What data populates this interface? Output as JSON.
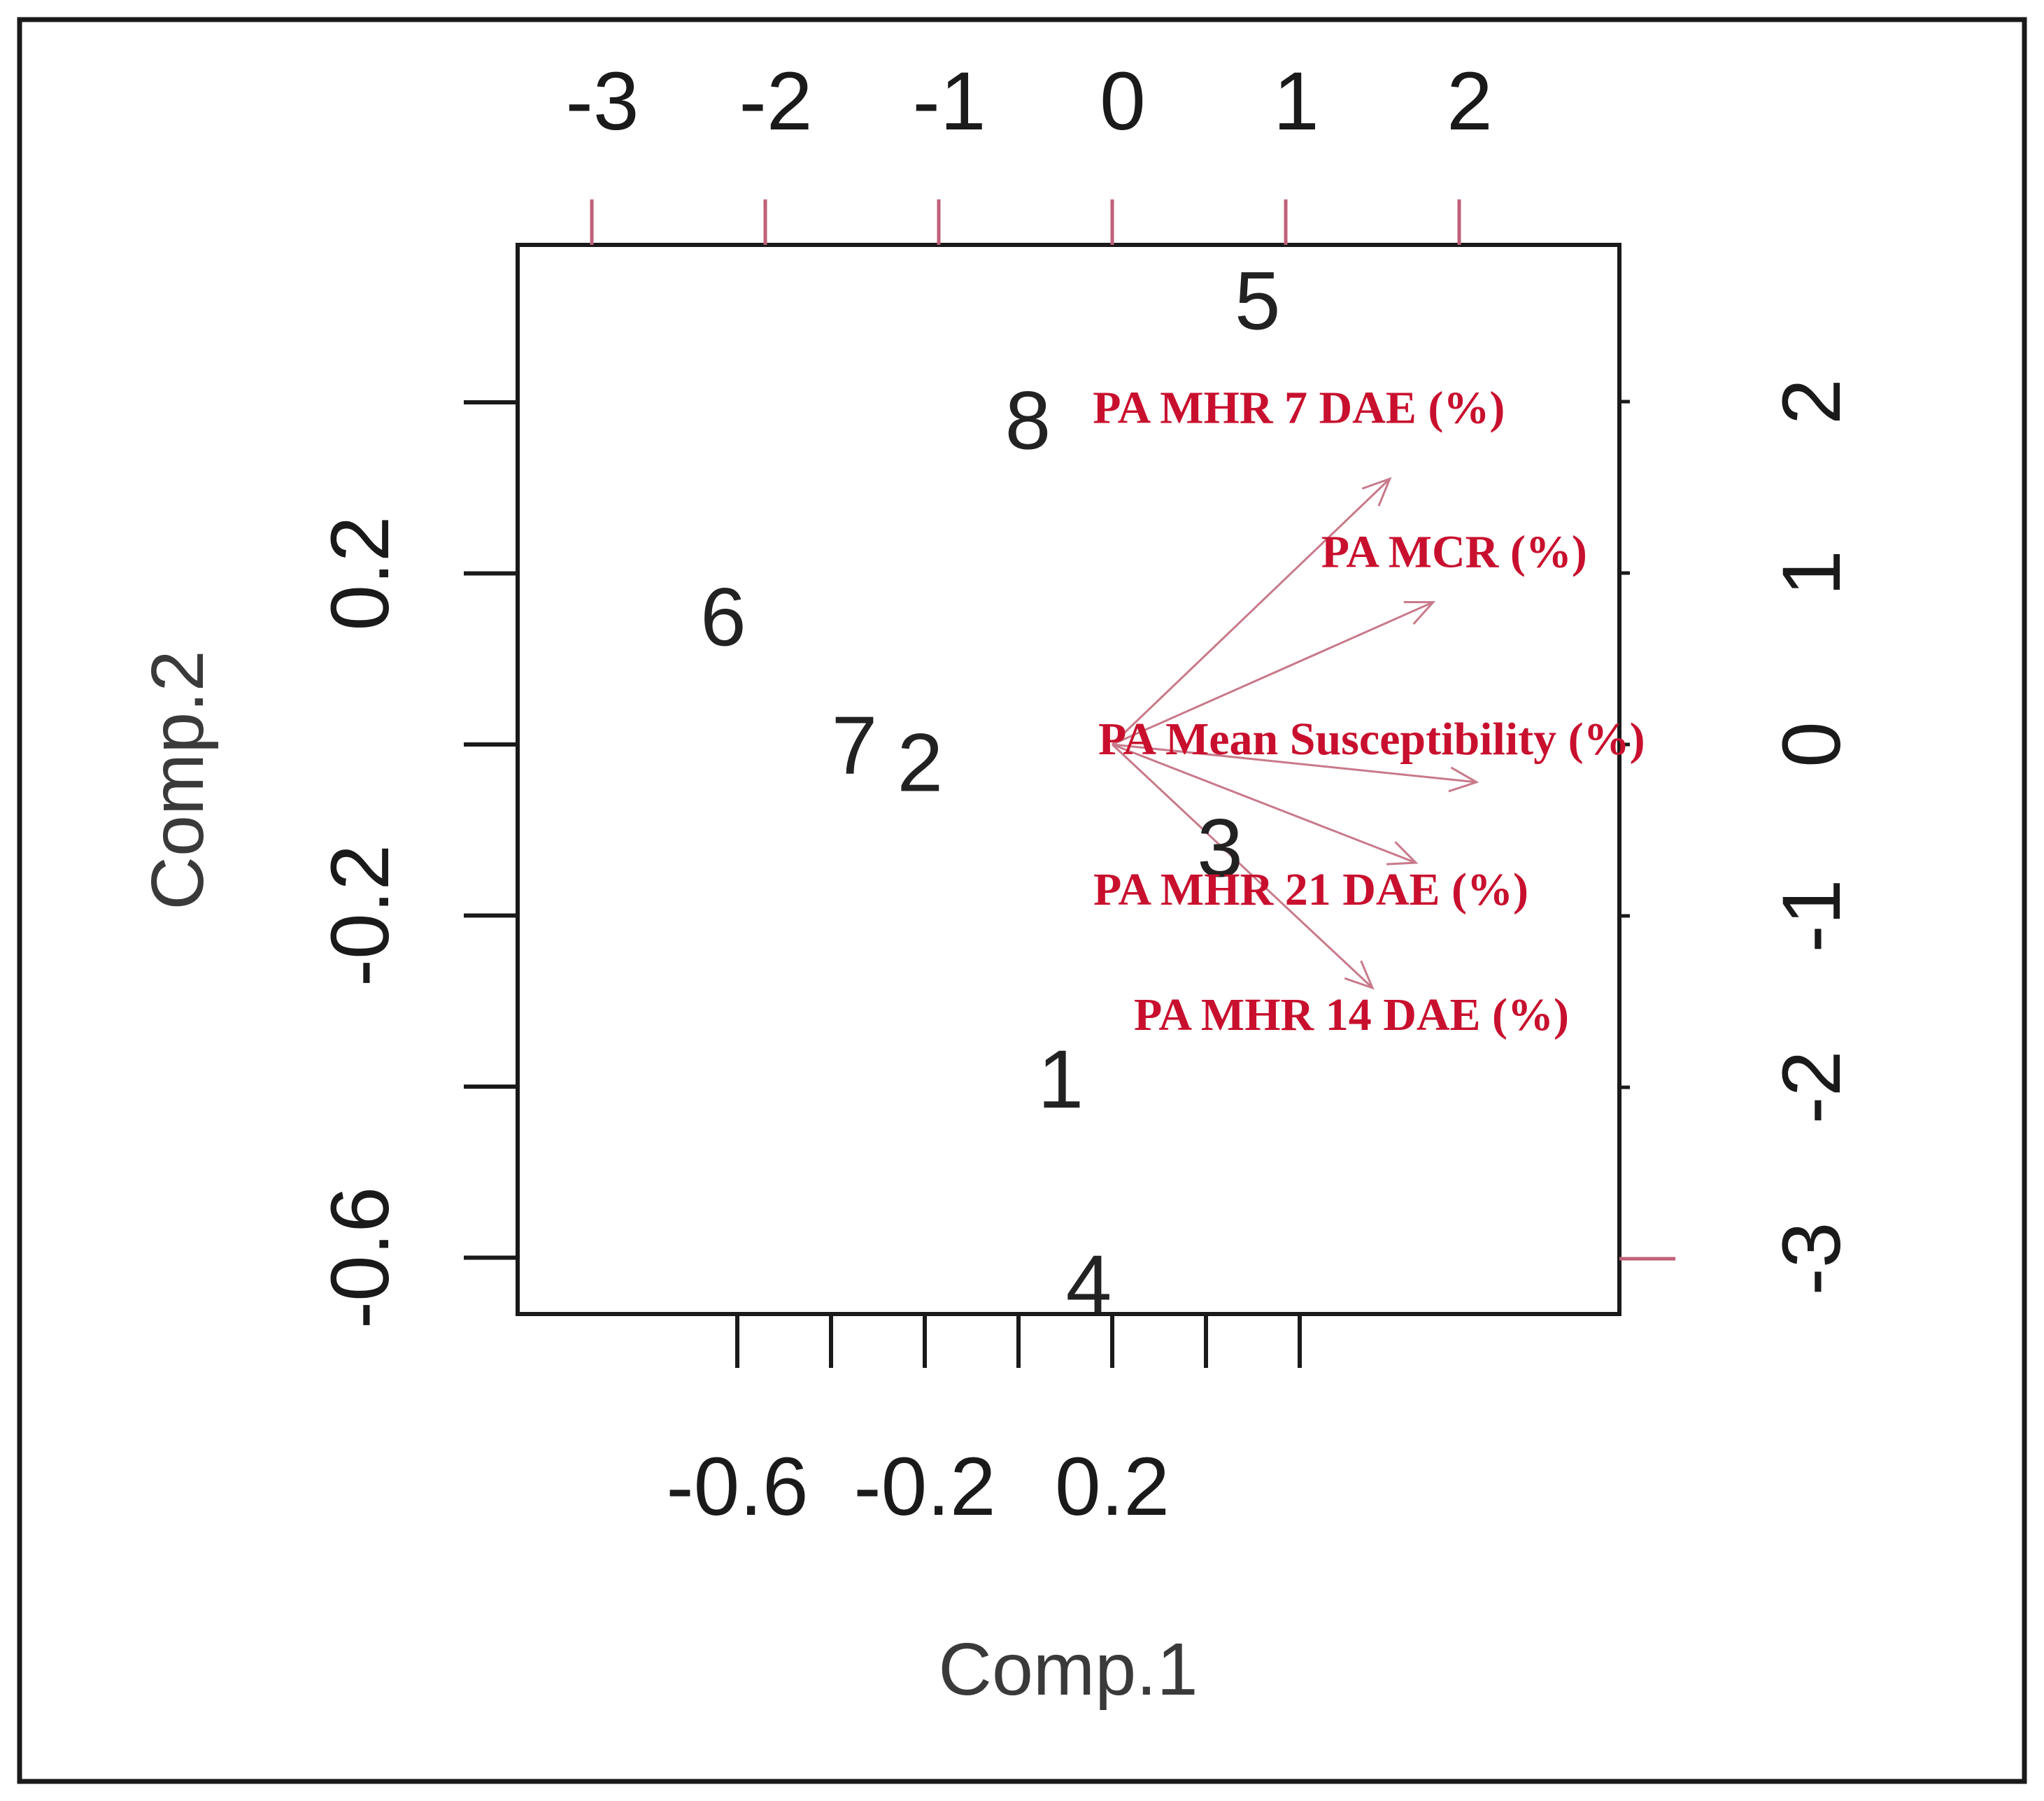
{
  "chart_data": {
    "type": "scatter",
    "subtype": "pca-biplot",
    "title": "",
    "xlabel": "Comp.1",
    "ylabel": "Comp.2",
    "x_ticks": [
      "-0.6",
      "-0.2",
      "0.2"
    ],
    "y_ticks": [
      "-0.6",
      "-0.2",
      "0.2"
    ],
    "xlim": [
      -0.6,
      0.57
    ],
    "ylim": [
      -0.64,
      0.6
    ],
    "secondary_x_ticks": [
      "-3",
      "-2",
      "-1",
      "0",
      "1",
      "2"
    ],
    "secondary_y_ticks": [
      "-3",
      "-2",
      "-1",
      "0",
      "1",
      "2"
    ],
    "secondary_ticks_color": "#c0607a",
    "points": [
      {
        "label": "1",
        "x": 0.09,
        "y": -0.39
      },
      {
        "label": "2",
        "x": -0.21,
        "y": -0.02
      },
      {
        "label": "3",
        "x": 0.43,
        "y": -0.12
      },
      {
        "label": "4",
        "x": 0.15,
        "y": -0.63
      },
      {
        "label": "5",
        "x": 0.51,
        "y": 0.52
      },
      {
        "label": "6",
        "x": -0.63,
        "y": 0.15
      },
      {
        "label": "7",
        "x": -0.35,
        "y": 0.0
      },
      {
        "label": "8",
        "x": 0.02,
        "y": 0.38
      }
    ],
    "loadings": [
      {
        "label": "PA MHR 7 DAE (%)",
        "x": 1.6,
        "y": 1.55
      },
      {
        "label": "PA MCR (%)",
        "x": 1.85,
        "y": 0.83
      },
      {
        "label": "PA Mean Susceptibility  (%)",
        "x": 2.1,
        "y": -0.22
      },
      {
        "label": "PA MHR 21 DAE (%)",
        "x": 1.75,
        "y": -0.69
      },
      {
        "label": "PA MHR 14 DAE (%)",
        "x": 1.5,
        "y": -1.42
      }
    ],
    "loading_color": "#c8102e",
    "arrow_color": "#c87a8a",
    "grid": false,
    "legend": "none"
  }
}
